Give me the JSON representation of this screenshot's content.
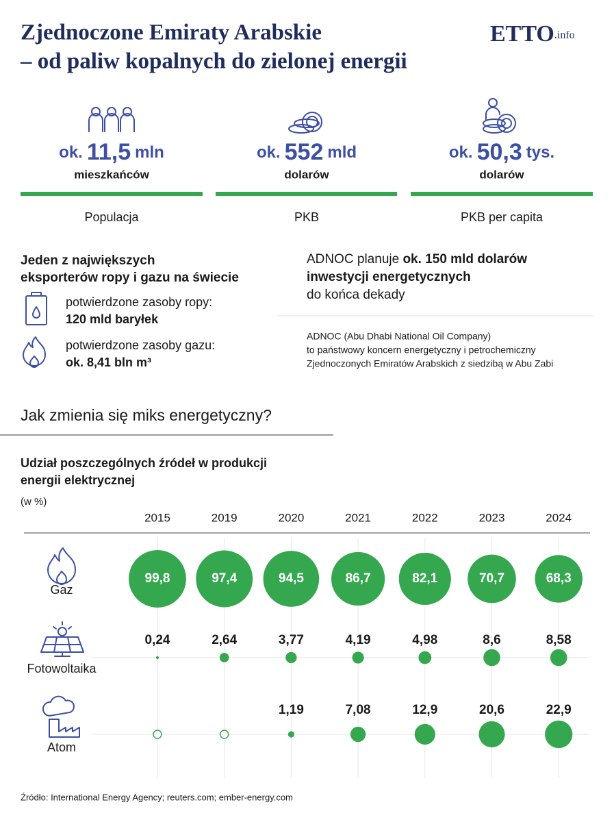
{
  "header": {
    "title_line1": "Zjednoczone Emiraty Arabskie",
    "title_line2": "– od paliw kopalnych do zielonej energii",
    "logo": "ETTO",
    "logo_suffix": ".info"
  },
  "stats": [
    {
      "prefix": "ok.",
      "number": "11,5",
      "unit": "mln",
      "sub": "mieszkańców",
      "label": "Populacja"
    },
    {
      "prefix": "ok.",
      "number": "552",
      "unit": "mld",
      "sub": "dolarów",
      "label": "PKB"
    },
    {
      "prefix": "ok.",
      "number": "50,3",
      "unit": "tys.",
      "sub": "dolarów",
      "label": "PKB per capita"
    }
  ],
  "exports": {
    "heading_line1": "Jeden z największych",
    "heading_line2": "eksporterów ropy i gazu na świecie",
    "items": [
      {
        "label": "potwierdzone zasoby ropy:",
        "value": "120 mld baryłek"
      },
      {
        "label": "potwierdzone zasoby gazu:",
        "value": "ok. 8,41 bln m³"
      }
    ]
  },
  "adnoc": {
    "line1_plain": "ADNOC planuje ",
    "line1_bold": "ok. 150 mld dolarów",
    "line2_bold": "inwestycji energetycznych",
    "line3": "do końca dekady",
    "note_line1": "ADNOC (Abu Dhabi National Oil Company)",
    "note_line2": "to państwowy koncern energetyczny i petrochemiczny",
    "note_line3": "Zjednoczonych Emiratów Arabskich z siedzibą w Abu Zabi"
  },
  "section_title": "Jak zmienia się miks energetyczny?",
  "chart_data": {
    "type": "bubble",
    "title_line1": "Udział poszczególnych źródeł w produkcji",
    "title_line2": "energii elektrycznej",
    "unit": "(w %)",
    "categories": [
      "2015",
      "2019",
      "2020",
      "2021",
      "2022",
      "2023",
      "2024"
    ],
    "series": [
      {
        "name": "Gaz",
        "color": "#35a84f",
        "values": [
          99.8,
          97.4,
          94.5,
          86.7,
          82.1,
          70.7,
          68.3
        ],
        "value_labels": [
          "99,8",
          "97,4",
          "94,5",
          "86,7",
          "82,1",
          "70,7",
          "68,3"
        ]
      },
      {
        "name": "Fotowoltaika",
        "color": "#35a84f",
        "values": [
          0.24,
          2.64,
          3.77,
          4.19,
          4.98,
          8.6,
          8.58
        ],
        "value_labels": [
          "0,24",
          "2,64",
          "3,77",
          "4,19",
          "4,98",
          "8,6",
          "8,58"
        ]
      },
      {
        "name": "Atom",
        "color": "#35a84f",
        "values": [
          null,
          null,
          1.19,
          7.08,
          12.9,
          20.6,
          22.9
        ],
        "value_labels": [
          null,
          null,
          "1,19",
          "7,08",
          "12,9",
          "20,6",
          "22,9"
        ]
      }
    ]
  },
  "source": "Źródło: International Energy Agency; reuters.com; ember-energy.com"
}
